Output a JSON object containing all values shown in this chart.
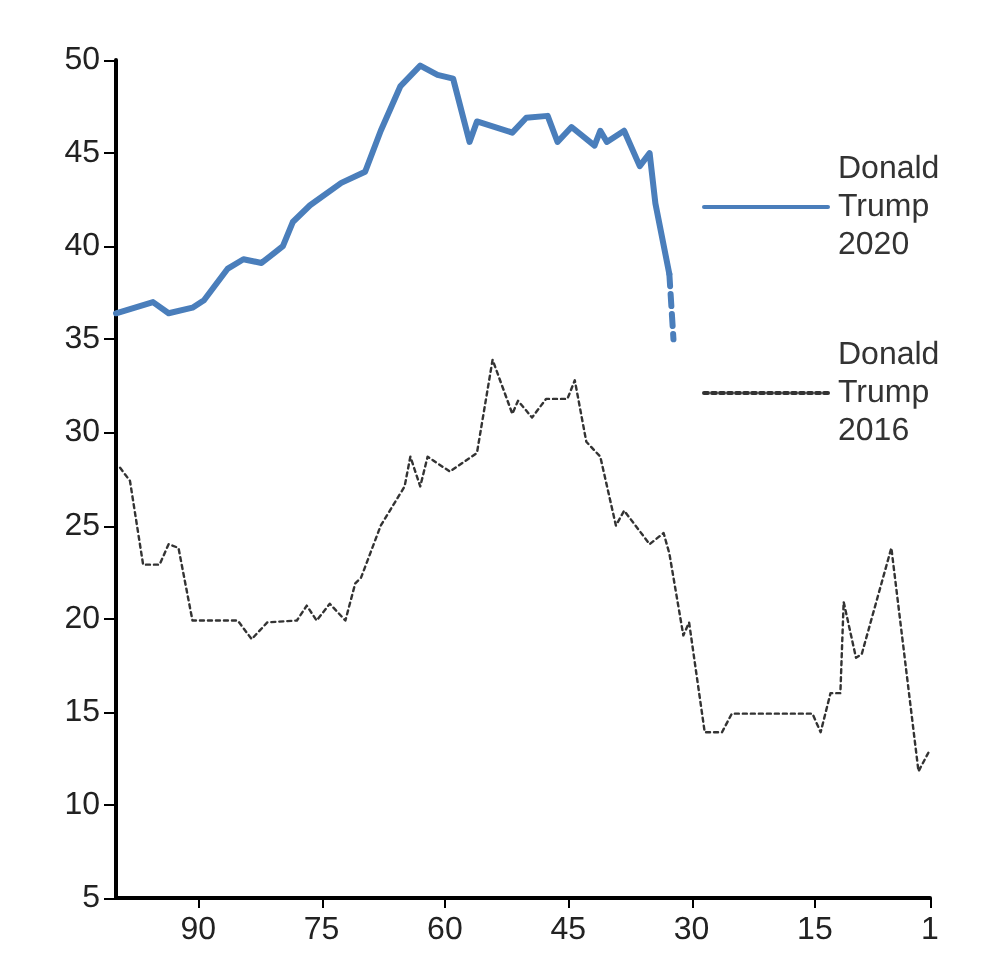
{
  "chart_data": {
    "type": "line",
    "xlim": [
      100,
      1
    ],
    "xticks": [
      90,
      75,
      60,
      45,
      30,
      15,
      1
    ],
    "ylim": [
      5,
      50
    ],
    "yticks": [
      5,
      10,
      15,
      20,
      25,
      30,
      35,
      40,
      45,
      50
    ],
    "grid": false,
    "legend": "right",
    "marker": "none",
    "series": [
      {
        "name": "Donald Trump 2020",
        "color": "#4a7ebb",
        "line_style": "solid",
        "x": [
          100,
          95.5,
          93.6,
          90.7,
          89.3,
          86.4,
          84.5,
          82.3,
          79.7,
          78.5,
          76.4,
          72.6,
          69.7,
          67.8,
          65.4,
          63,
          60.9,
          59,
          57,
          56.1,
          51.8,
          50.1,
          47.5,
          46.3,
          44.6,
          41.8,
          41.1,
          40.3,
          38.2,
          36.3,
          35.1,
          34.4,
          32.7
        ],
        "values": [
          36.4,
          37,
          36.4,
          36.7,
          37.1,
          38.8,
          39.3,
          39.1,
          40,
          41.3,
          42.2,
          43.4,
          44,
          46.2,
          48.6,
          49.7,
          49.2,
          49,
          45.6,
          46.7,
          46.1,
          46.9,
          47,
          45.6,
          46.4,
          45.4,
          46.2,
          45.6,
          46.2,
          44.3,
          45,
          42.3,
          38.5
        ]
      },
      {
        "color": "#4a7ebb",
        "line_style": "dashed",
        "x": [
          32.7,
          32.2
        ],
        "values": [
          38.5,
          35
        ]
      },
      {
        "name": "Donald Trump 2016",
        "color": "#333333",
        "line_style": "dotted",
        "x": [
          99.5,
          98.3,
          96.7,
          94.7,
          93.6,
          92.4,
          90.7,
          85.2,
          83.5,
          81.6,
          78,
          76.8,
          75.6,
          74,
          72.1,
          70.9,
          70.2,
          67.8,
          64.9,
          64.2,
          63,
          62.1,
          59.4,
          56.1,
          54.2,
          51.8,
          51.1,
          49.4,
          47.7,
          45.1,
          44.2,
          42.8,
          41.1,
          39.2,
          38.2,
          35.1,
          33.4,
          32.7,
          31,
          30.3,
          28.4,
          26.3,
          25.1,
          15.3,
          14.3,
          13.1,
          11.9,
          11.5,
          10,
          9.3,
          5.7,
          2.4,
          1.2
        ],
        "values": [
          28.1,
          27.4,
          22.9,
          22.9,
          24,
          23.8,
          19.9,
          19.9,
          18.9,
          19.8,
          19.9,
          20.7,
          19.9,
          20.8,
          19.9,
          21.9,
          22.2,
          25,
          27.1,
          28.7,
          27.1,
          28.7,
          27.9,
          28.9,
          33.9,
          31,
          31.7,
          30.8,
          31.8,
          31.8,
          32.8,
          29.5,
          28.7,
          25,
          25.8,
          24,
          24.6,
          23.5,
          19.1,
          19.8,
          13.9,
          13.9,
          14.9,
          14.9,
          13.9,
          16,
          16,
          20.9,
          17.9,
          18.1,
          23.8,
          11.8,
          12.8
        ]
      }
    ]
  }
}
